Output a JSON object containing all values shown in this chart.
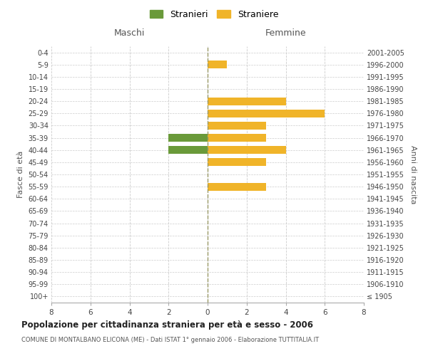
{
  "age_groups": [
    "100+",
    "95-99",
    "90-94",
    "85-89",
    "80-84",
    "75-79",
    "70-74",
    "65-69",
    "60-64",
    "55-59",
    "50-54",
    "45-49",
    "40-44",
    "35-39",
    "30-34",
    "25-29",
    "20-24",
    "15-19",
    "10-14",
    "5-9",
    "0-4"
  ],
  "birth_years": [
    "≤ 1905",
    "1906-1910",
    "1911-1915",
    "1916-1920",
    "1921-1925",
    "1926-1930",
    "1931-1935",
    "1936-1940",
    "1941-1945",
    "1946-1950",
    "1951-1955",
    "1956-1960",
    "1961-1965",
    "1966-1970",
    "1971-1975",
    "1976-1980",
    "1981-1985",
    "1986-1990",
    "1991-1995",
    "1996-2000",
    "2001-2005"
  ],
  "maschi_stranieri": [
    0,
    0,
    0,
    0,
    0,
    0,
    0,
    0,
    0,
    0,
    0,
    0,
    2,
    2,
    0,
    0,
    0,
    0,
    0,
    0,
    0
  ],
  "femmine_straniere": [
    0,
    0,
    0,
    0,
    0,
    0,
    0,
    0,
    0,
    3,
    0,
    3,
    4,
    3,
    3,
    6,
    4,
    0,
    0,
    1,
    0
  ],
  "color_maschi": "#6a9a3a",
  "color_femmine": "#f0b429",
  "xlim": 8,
  "title": "Popolazione per cittadinanza straniera per età e sesso - 2006",
  "subtitle": "COMUNE DI MONTALBANO ELICONA (ME) - Dati ISTAT 1° gennaio 2006 - Elaborazione TUTTITALIA.IT",
  "ylabel_left": "Fasce di età",
  "ylabel_right": "Anni di nascita",
  "label_maschi": "Maschi",
  "label_femmine": "Femmine",
  "legend_stranieri": "Stranieri",
  "legend_straniere": "Straniere",
  "bg_color": "#ffffff",
  "grid_color": "#cccccc",
  "bar_height": 0.65
}
